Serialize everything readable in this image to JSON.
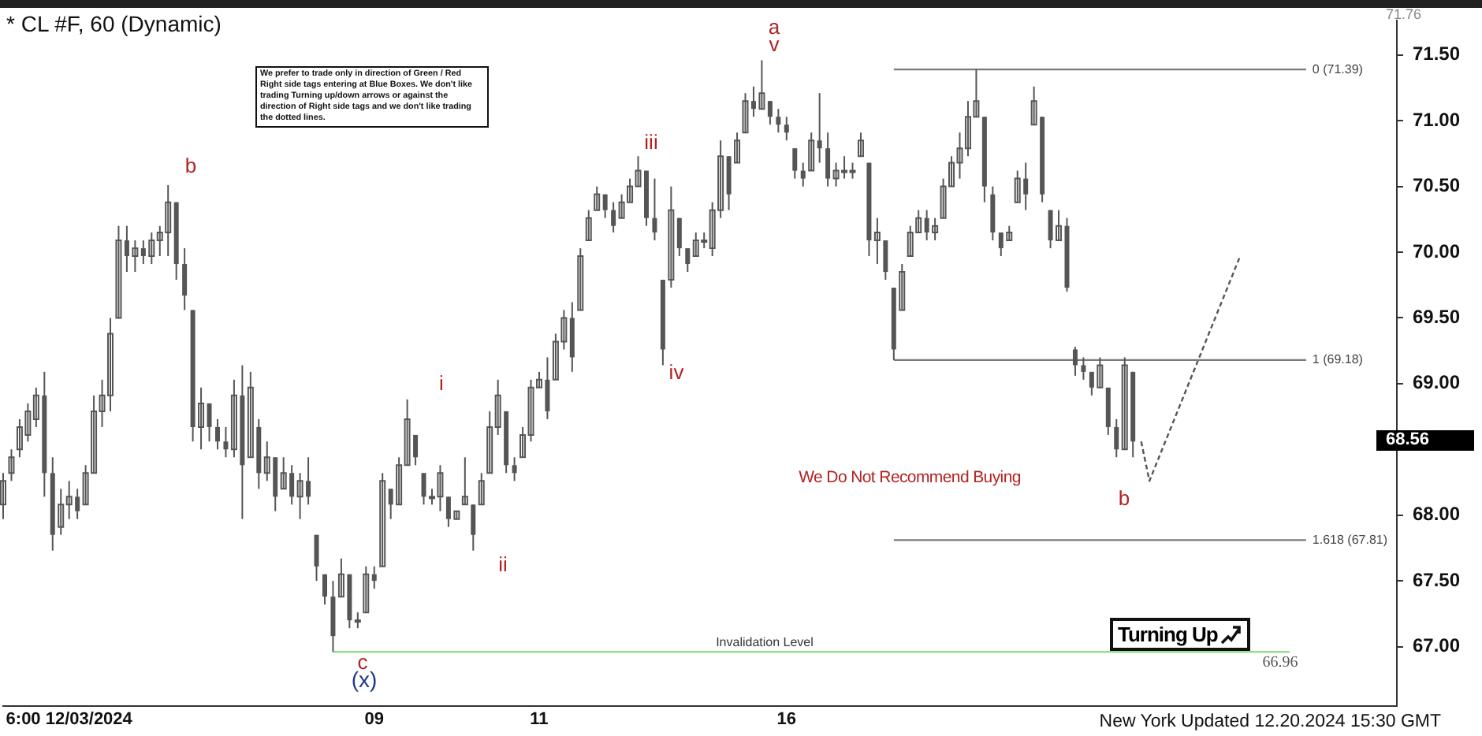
{
  "chart_data": {
    "type": "candlestick",
    "title": "* CL #F, 60 (Dynamic)",
    "color": "#555555",
    "categories": [
      null,
      null,
      null,
      null,
      null,
      null,
      null,
      null,
      "6:00 12/03/2024",
      null,
      null,
      null,
      null,
      null,
      null,
      null,
      null,
      null,
      null,
      null,
      null,
      null,
      null,
      null,
      null,
      null,
      null,
      null,
      null,
      null,
      null,
      null,
      null,
      null,
      null,
      null,
      null,
      null,
      null,
      null,
      null,
      null,
      null,
      null,
      null,
      "09",
      null,
      null,
      null,
      null,
      null,
      null,
      null,
      null,
      null,
      null,
      null,
      null,
      null,
      null,
      null,
      null,
      null,
      null,
      null,
      "11",
      null,
      null,
      null,
      null,
      null,
      null,
      null,
      null,
      null,
      null,
      null,
      null,
      null,
      null,
      null,
      null,
      null,
      null,
      null,
      null,
      null,
      null,
      null,
      null,
      null,
      null,
      null,
      null,
      null,
      "16",
      null,
      null,
      null,
      null,
      null,
      null,
      null,
      null,
      null,
      null,
      null,
      null,
      null,
      null,
      null,
      null,
      null,
      null,
      null,
      null,
      null,
      null,
      null,
      null,
      null,
      null,
      null,
      null,
      null,
      null,
      null,
      null,
      null,
      null,
      null,
      null,
      null,
      null,
      null,
      null,
      null,
      null,
      null,
      null,
      null,
      null,
      null,
      null,
      null,
      null,
      null,
      null,
      null,
      null,
      null,
      null,
      null,
      null,
      null,
      null,
      null,
      null,
      null,
      null,
      null,
      null,
      null,
      null,
      null,
      null,
      null,
      null,
      null,
      null
    ],
    "ohlc": [
      [
        68.08,
        68.32,
        67.97,
        68.26
      ],
      [
        68.32,
        68.5,
        68.26,
        68.44
      ],
      [
        68.5,
        68.73,
        68.44,
        68.67
      ],
      [
        68.61,
        68.85,
        68.56,
        68.79
      ],
      [
        68.73,
        68.97,
        68.67,
        68.91
      ],
      [
        68.91,
        69.09,
        68.14,
        68.32
      ],
      [
        68.32,
        68.44,
        67.73,
        67.85
      ],
      [
        67.91,
        68.2,
        67.85,
        68.08
      ],
      [
        68.08,
        68.26,
        67.97,
        68.14
      ],
      [
        68.14,
        68.2,
        67.97,
        68.03
      ],
      [
        68.08,
        68.38,
        68.08,
        68.32
      ],
      [
        68.32,
        68.91,
        68.32,
        68.79
      ],
      [
        68.79,
        69.03,
        68.67,
        68.91
      ],
      [
        68.91,
        69.5,
        68.79,
        69.38
      ],
      [
        69.5,
        70.2,
        69.5,
        70.09
      ],
      [
        70.09,
        70.2,
        69.85,
        69.97
      ],
      [
        69.97,
        70.09,
        69.85,
        70.03
      ],
      [
        70.03,
        70.09,
        69.91,
        69.97
      ],
      [
        69.97,
        70.15,
        69.91,
        70.09
      ],
      [
        70.09,
        70.2,
        69.97,
        70.15
      ],
      [
        70.15,
        70.51,
        69.97,
        70.38
      ],
      [
        70.38,
        70.38,
        69.79,
        69.91
      ],
      [
        69.91,
        70.03,
        69.56,
        69.67
      ],
      [
        69.56,
        69.56,
        68.56,
        68.67
      ],
      [
        68.67,
        68.97,
        68.5,
        68.85
      ],
      [
        68.85,
        68.85,
        68.56,
        68.67
      ],
      [
        68.67,
        68.73,
        68.5,
        68.56
      ],
      [
        68.56,
        68.67,
        68.44,
        68.5
      ],
      [
        68.5,
        69.03,
        68.44,
        68.91
      ],
      [
        68.91,
        69.14,
        67.97,
        68.38
      ],
      [
        68.44,
        69.09,
        68.44,
        68.97
      ],
      [
        68.67,
        68.73,
        68.2,
        68.32
      ],
      [
        68.32,
        68.56,
        68.26,
        68.44
      ],
      [
        68.44,
        68.44,
        68.03,
        68.14
      ],
      [
        68.2,
        68.44,
        68.2,
        68.32
      ],
      [
        68.32,
        68.38,
        68.08,
        68.14
      ],
      [
        68.14,
        68.32,
        67.97,
        68.26
      ],
      [
        68.26,
        68.44,
        68.08,
        68.14
      ],
      [
        67.85,
        67.85,
        67.5,
        67.61
      ],
      [
        67.55,
        67.55,
        67.32,
        67.38
      ],
      [
        67.38,
        67.5,
        66.96,
        67.08
      ],
      [
        67.38,
        67.67,
        67.38,
        67.55
      ],
      [
        67.55,
        67.55,
        67.14,
        67.2
      ],
      [
        67.2,
        67.26,
        67.14,
        67.2
      ],
      [
        67.26,
        67.61,
        67.26,
        67.55
      ],
      [
        67.55,
        67.61,
        67.44,
        67.5
      ],
      [
        67.61,
        68.32,
        67.61,
        68.26
      ],
      [
        68.2,
        68.2,
        67.97,
        68.08
      ],
      [
        68.08,
        68.44,
        68.08,
        68.38
      ],
      [
        68.38,
        68.88,
        68.38,
        68.73
      ],
      [
        68.61,
        68.61,
        68.38,
        68.44
      ],
      [
        68.32,
        68.32,
        68.08,
        68.14
      ],
      [
        68.14,
        68.2,
        68.08,
        68.14
      ],
      [
        68.14,
        68.38,
        68.03,
        68.32
      ],
      [
        68.14,
        68.14,
        67.91,
        67.97
      ],
      [
        67.97,
        68.03,
        67.97,
        68.03
      ],
      [
        68.08,
        68.44,
        68.08,
        68.14
      ],
      [
        68.08,
        68.08,
        67.73,
        67.85
      ],
      [
        68.08,
        68.32,
        68.08,
        68.26
      ],
      [
        68.32,
        68.79,
        68.32,
        68.67
      ],
      [
        68.67,
        69.03,
        68.61,
        68.91
      ],
      [
        68.79,
        68.79,
        68.32,
        68.38
      ],
      [
        68.38,
        68.44,
        68.26,
        68.32
      ],
      [
        68.44,
        68.67,
        68.44,
        68.61
      ],
      [
        68.61,
        69.03,
        68.56,
        68.97
      ],
      [
        68.97,
        69.09,
        68.97,
        69.03
      ],
      [
        69.03,
        69.2,
        68.73,
        68.79
      ],
      [
        69.03,
        69.38,
        69.03,
        69.32
      ],
      [
        69.32,
        69.56,
        69.26,
        69.5
      ],
      [
        69.5,
        69.62,
        69.09,
        69.2
      ],
      [
        69.56,
        70.03,
        69.56,
        69.97
      ],
      [
        70.09,
        70.32,
        70.09,
        70.26
      ],
      [
        70.32,
        70.5,
        70.32,
        70.44
      ],
      [
        70.44,
        70.44,
        70.26,
        70.32
      ],
      [
        70.32,
        70.38,
        70.15,
        70.2
      ],
      [
        70.26,
        70.44,
        70.26,
        70.38
      ],
      [
        70.38,
        70.56,
        70.38,
        70.5
      ],
      [
        70.5,
        70.73,
        70.5,
        70.62
      ],
      [
        70.62,
        70.62,
        70.2,
        70.26
      ],
      [
        70.26,
        70.56,
        70.09,
        70.15
      ],
      [
        69.79,
        69.79,
        69.14,
        69.26
      ],
      [
        69.79,
        70.5,
        69.73,
        70.32
      ],
      [
        70.26,
        70.26,
        69.97,
        70.03
      ],
      [
        70.03,
        70.03,
        69.85,
        69.91
      ],
      [
        69.97,
        70.15,
        69.97,
        70.09
      ],
      [
        70.09,
        70.15,
        70.03,
        70.09
      ],
      [
        70.03,
        70.38,
        69.97,
        70.32
      ],
      [
        70.32,
        70.85,
        70.26,
        70.73
      ],
      [
        70.73,
        70.73,
        70.32,
        70.44
      ],
      [
        70.68,
        70.91,
        70.68,
        70.85
      ],
      [
        70.91,
        71.21,
        70.91,
        71.15
      ],
      [
        71.15,
        71.26,
        71.03,
        71.09
      ],
      [
        71.09,
        71.46,
        71.09,
        71.21
      ],
      [
        71.15,
        71.15,
        70.97,
        71.03
      ],
      [
        71.03,
        71.09,
        70.91,
        70.97
      ],
      [
        70.97,
        71.03,
        70.85,
        70.91
      ],
      [
        70.79,
        70.79,
        70.56,
        70.62
      ],
      [
        70.62,
        70.68,
        70.5,
        70.56
      ],
      [
        70.62,
        70.91,
        70.62,
        70.85
      ],
      [
        70.85,
        71.21,
        70.68,
        70.79
      ],
      [
        70.79,
        70.91,
        70.5,
        70.56
      ],
      [
        70.56,
        70.68,
        70.5,
        70.62
      ],
      [
        70.62,
        70.73,
        70.56,
        70.62
      ],
      [
        70.62,
        70.68,
        70.56,
        70.62
      ],
      [
        70.73,
        70.91,
        70.73,
        70.85
      ],
      [
        70.68,
        70.68,
        69.97,
        70.09
      ],
      [
        70.09,
        70.26,
        69.91,
        70.15
      ],
      [
        70.09,
        70.09,
        69.79,
        69.85
      ],
      [
        69.73,
        69.73,
        69.18,
        69.26
      ],
      [
        69.56,
        69.91,
        69.56,
        69.85
      ],
      [
        69.97,
        70.2,
        69.97,
        70.15
      ],
      [
        70.15,
        70.32,
        70.15,
        70.26
      ],
      [
        70.26,
        70.32,
        70.09,
        70.15
      ],
      [
        70.15,
        70.26,
        70.09,
        70.2
      ],
      [
        70.26,
        70.56,
        70.26,
        70.5
      ],
      [
        70.5,
        70.73,
        70.5,
        70.68
      ],
      [
        70.68,
        70.91,
        70.56,
        70.79
      ],
      [
        70.79,
        71.15,
        70.73,
        71.03
      ],
      [
        71.03,
        71.39,
        71.03,
        71.15
      ],
      [
        71.03,
        71.03,
        70.38,
        70.5
      ],
      [
        70.44,
        70.5,
        70.09,
        70.15
      ],
      [
        70.15,
        70.15,
        69.97,
        70.03
      ],
      [
        70.09,
        70.2,
        70.09,
        70.15
      ],
      [
        70.38,
        70.62,
        70.38,
        70.56
      ],
      [
        70.56,
        70.68,
        70.32,
        70.44
      ],
      [
        70.97,
        71.26,
        70.97,
        71.15
      ],
      [
        71.03,
        71.03,
        70.38,
        70.44
      ],
      [
        70.32,
        70.32,
        70.03,
        70.09
      ],
      [
        70.09,
        70.32,
        70.09,
        70.2
      ],
      [
        70.2,
        70.26,
        69.7,
        69.73
      ],
      [
        69.26,
        69.28,
        69.06,
        69.14
      ],
      [
        69.14,
        69.2,
        69.03,
        69.09
      ],
      [
        69.09,
        69.09,
        68.91,
        68.97
      ],
      [
        68.97,
        69.2,
        68.97,
        69.14
      ],
      [
        68.97,
        68.97,
        68.61,
        68.67
      ],
      [
        68.67,
        68.73,
        68.44,
        68.5
      ],
      [
        68.5,
        69.2,
        68.5,
        69.14
      ],
      [
        69.09,
        69.09,
        68.44,
        68.56
      ],
      null,
      null,
      null,
      null,
      null,
      null,
      null,
      null,
      null,
      null,
      null,
      null,
      null,
      null,
      null,
      null,
      null,
      null,
      null,
      null,
      null,
      null,
      null,
      null,
      null,
      null,
      null,
      null,
      null,
      null,
      null,
      null
    ],
    "series": [
      {
        "type": "line",
        "name": "0 (71.39)",
        "color": "#7a7a7a",
        "values": [
          null,
          null,
          null,
          null,
          null,
          null,
          null,
          null,
          null,
          null,
          null,
          null,
          null,
          null,
          null,
          null,
          null,
          null,
          null,
          null,
          null,
          null,
          null,
          null,
          null,
          null,
          null,
          null,
          null,
          null,
          null,
          null,
          null,
          null,
          null,
          null,
          null,
          null,
          null,
          null,
          null,
          null,
          null,
          null,
          null,
          null,
          null,
          null,
          null,
          null,
          null,
          null,
          null,
          null,
          null,
          null,
          null,
          null,
          null,
          null,
          null,
          null,
          null,
          null,
          null,
          null,
          null,
          null,
          null,
          null,
          null,
          null,
          null,
          null,
          null,
          null,
          null,
          null,
          null,
          null,
          null,
          null,
          null,
          null,
          null,
          null,
          null,
          null,
          null,
          null,
          null,
          null,
          null,
          null,
          null,
          null,
          null,
          null,
          null,
          null,
          null,
          null,
          null,
          null,
          null,
          null,
          null,
          null,
          71.39,
          null,
          null,
          null,
          null,
          null,
          null,
          null,
          null,
          null,
          null,
          null,
          null,
          null,
          null,
          null,
          null,
          null,
          null,
          null,
          null,
          null,
          null,
          null,
          null,
          null,
          null,
          null,
          null,
          null,
          null,
          null,
          null,
          null,
          null,
          null,
          null,
          null,
          null,
          null,
          null,
          null,
          null,
          null,
          null,
          null,
          null,
          null,
          null,
          null,
          71.39,
          null,
          null,
          null,
          null,
          null,
          null,
          null,
          null,
          null,
          null,
          null
        ]
      },
      {
        "type": "line",
        "name": "1 (69.18)",
        "color": "#7a7a7a",
        "values": [
          null,
          null,
          null,
          null,
          null,
          null,
          null,
          null,
          null,
          null,
          null,
          null,
          null,
          null,
          null,
          null,
          null,
          null,
          null,
          null,
          null,
          null,
          null,
          null,
          null,
          null,
          null,
          null,
          null,
          null,
          null,
          null,
          null,
          null,
          null,
          null,
          null,
          null,
          null,
          null,
          null,
          null,
          null,
          null,
          null,
          null,
          null,
          null,
          null,
          null,
          null,
          null,
          null,
          null,
          null,
          null,
          null,
          null,
          null,
          null,
          null,
          null,
          null,
          null,
          null,
          null,
          null,
          null,
          null,
          null,
          null,
          null,
          null,
          null,
          null,
          null,
          null,
          null,
          null,
          null,
          null,
          null,
          null,
          null,
          null,
          null,
          null,
          null,
          null,
          null,
          null,
          null,
          null,
          null,
          null,
          null,
          null,
          null,
          null,
          null,
          null,
          null,
          null,
          null,
          null,
          null,
          null,
          null,
          69.18,
          null,
          null,
          null,
          null,
          null,
          null,
          null,
          null,
          null,
          null,
          null,
          null,
          null,
          null,
          null,
          null,
          null,
          null,
          null,
          null,
          null,
          null,
          null,
          null,
          null,
          null,
          null,
          null,
          null,
          null,
          null,
          null,
          null,
          null,
          null,
          null,
          null,
          null,
          null,
          null,
          null,
          null,
          null,
          null,
          null,
          null,
          null,
          null,
          null,
          69.18,
          null,
          null,
          null,
          null,
          null,
          null,
          null,
          null,
          null,
          null,
          null
        ]
      },
      {
        "type": "line",
        "name": "1.618 (67.81)",
        "color": "#7a7a7a",
        "values": [
          null,
          null,
          null,
          null,
          null,
          null,
          null,
          null,
          null,
          null,
          null,
          null,
          null,
          null,
          null,
          null,
          null,
          null,
          null,
          null,
          null,
          null,
          null,
          null,
          null,
          null,
          null,
          null,
          null,
          null,
          null,
          null,
          null,
          null,
          null,
          null,
          null,
          null,
          null,
          null,
          null,
          null,
          null,
          null,
          null,
          null,
          null,
          null,
          null,
          null,
          null,
          null,
          null,
          null,
          null,
          null,
          null,
          null,
          null,
          null,
          null,
          null,
          null,
          null,
          null,
          null,
          null,
          null,
          null,
          null,
          null,
          null,
          null,
          null,
          null,
          null,
          null,
          null,
          null,
          null,
          null,
          null,
          null,
          null,
          null,
          null,
          null,
          null,
          null,
          null,
          null,
          null,
          null,
          null,
          null,
          null,
          null,
          null,
          null,
          null,
          null,
          null,
          null,
          null,
          null,
          null,
          null,
          null,
          67.81,
          null,
          null,
          null,
          null,
          null,
          null,
          null,
          null,
          null,
          null,
          null,
          null,
          null,
          null,
          null,
          null,
          null,
          null,
          null,
          null,
          null,
          null,
          null,
          null,
          null,
          null,
          null,
          null,
          null,
          null,
          null,
          null,
          null,
          null,
          null,
          null,
          null,
          null,
          null,
          null,
          null,
          null,
          null,
          null,
          null,
          null,
          null,
          null,
          null,
          67.81,
          null,
          null,
          null,
          null,
          null,
          null,
          null,
          null,
          null,
          null,
          null
        ]
      },
      {
        "type": "line",
        "color": "#90e090",
        "values": [
          null,
          null,
          null,
          null,
          null,
          null,
          null,
          null,
          null,
          null,
          null,
          null,
          null,
          null,
          null,
          null,
          null,
          null,
          null,
          null,
          null,
          null,
          null,
          null,
          null,
          null,
          null,
          null,
          null,
          null,
          null,
          null,
          null,
          null,
          null,
          null,
          null,
          null,
          null,
          null,
          66.96,
          null,
          null,
          null,
          null,
          null,
          null,
          null,
          null,
          null,
          null,
          null,
          null,
          null,
          null,
          null,
          null,
          null,
          null,
          null,
          null,
          null,
          null,
          null,
          null,
          null,
          null,
          null,
          null,
          null,
          null,
          null,
          null,
          null,
          null,
          null,
          null,
          null,
          null,
          null,
          null,
          null,
          null,
          null,
          null,
          null,
          null,
          null,
          null,
          null,
          null,
          null,
          null,
          null,
          null,
          null,
          null,
          null,
          null,
          null,
          null,
          null,
          null,
          null,
          null,
          null,
          null,
          null,
          null,
          null,
          null,
          null,
          null,
          null,
          null,
          null,
          null,
          null,
          null,
          null,
          null,
          null,
          null,
          null,
          null,
          null,
          null,
          null,
          null,
          null,
          null,
          null,
          null,
          null,
          null,
          null,
          null,
          null,
          null,
          null,
          null,
          null,
          null,
          null,
          null,
          null,
          null,
          null,
          null,
          null,
          null,
          null,
          null,
          null,
          null,
          null,
          66.96,
          null,
          null,
          null,
          null,
          null,
          null,
          null,
          null,
          null,
          null,
          null,
          null,
          null
        ]
      },
      {
        "type": "line",
        "color": "#555555",
        "line_style": "dashed",
        "values": [
          null,
          null,
          null,
          null,
          null,
          null,
          null,
          null,
          null,
          null,
          null,
          null,
          null,
          null,
          null,
          null,
          null,
          null,
          null,
          null,
          null,
          null,
          null,
          null,
          null,
          null,
          null,
          null,
          null,
          null,
          null,
          null,
          null,
          null,
          null,
          null,
          null,
          null,
          null,
          null,
          null,
          null,
          null,
          null,
          null,
          null,
          null,
          null,
          null,
          null,
          null,
          null,
          null,
          null,
          null,
          null,
          null,
          null,
          null,
          null,
          null,
          null,
          null,
          null,
          null,
          null,
          null,
          null,
          null,
          null,
          null,
          null,
          null,
          null,
          null,
          null,
          null,
          null,
          null,
          null,
          null,
          null,
          null,
          null,
          null,
          null,
          null,
          null,
          null,
          null,
          null,
          null,
          null,
          null,
          null,
          null,
          null,
          null,
          null,
          null,
          null,
          null,
          null,
          null,
          null,
          null,
          null,
          null,
          null,
          null,
          null,
          null,
          null,
          null,
          null,
          null,
          null,
          null,
          null,
          null,
          null,
          null,
          null,
          null,
          null,
          null,
          null,
          null,
          null,
          null,
          null,
          null,
          null,
          null,
          null,
          null,
          null,
          null,
          68.56,
          68.26,
          null,
          null,
          null,
          null,
          null,
          null,
          null,
          null,
          null,
          null,
          69.97,
          null,
          null,
          null,
          null,
          null,
          null,
          null,
          null,
          null,
          null,
          null,
          null,
          null,
          null,
          null,
          null,
          null,
          null,
          null
        ]
      }
    ],
    "ylim": [
      66.55,
      71.76
    ],
    "yticks": [
      {
        "value": 67,
        "label": "67.00"
      },
      {
        "value": 67.5,
        "label": "67.50"
      },
      {
        "value": 68,
        "label": "68.00"
      },
      {
        "value": 68.5,
        "label": null
      },
      {
        "value": 69,
        "label": "69.00"
      },
      {
        "value": 69.5,
        "label": "69.50"
      },
      {
        "value": 70,
        "label": "70.00"
      },
      {
        "value": 70.5,
        "label": "70.50"
      },
      {
        "value": 71,
        "label": "71.00"
      },
      {
        "value": 71.5,
        "label": "71.50"
      }
    ],
    "grid": false,
    "legend": false,
    "annotations": [
      "b",
      "c",
      "(x)",
      "i",
      "ii",
      "iii",
      "iv",
      "a",
      "v",
      "b",
      "We Do Not Recommend Buying",
      "Invalidation Level",
      "66.96",
      "68.56",
      "71.76",
      "We prefer to trade only in direction of Green / Red Right side tags entering at Blue Boxes. We don't like trading Turning up/down arrows or against the direction of Right side tags and we don't like trading the dotted lines.",
      "Turning Up",
      "New York Updated 12.20.2024 15:30 GMT"
    ]
  }
}
